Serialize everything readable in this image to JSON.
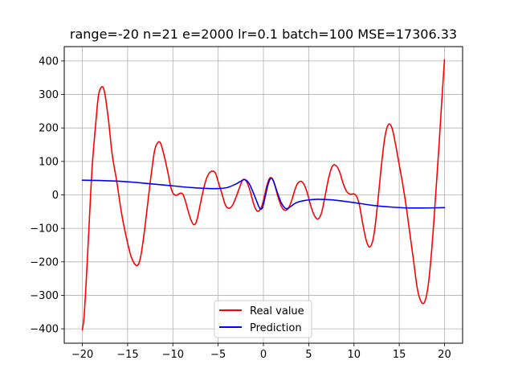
{
  "chart_data": {
    "type": "line",
    "title": "range=-20 n=21 e=2000 lr=0.1 batch=100 MSE=17306.33",
    "xlabel": "",
    "ylabel": "",
    "xlim": [
      -22,
      22
    ],
    "ylim": [
      -443,
      443
    ],
    "grid": true,
    "legend_position": "lower center",
    "x_ticks": [
      -20,
      -15,
      -10,
      -5,
      0,
      5,
      10,
      15,
      20
    ],
    "x_tick_labels": [
      "−20",
      "−15",
      "−10",
      "−5",
      "0",
      "5",
      "10",
      "15",
      "20"
    ],
    "y_ticks": [
      -400,
      -300,
      -200,
      -100,
      0,
      100,
      200,
      300,
      400
    ],
    "y_tick_labels": [
      "−400",
      "−300",
      "−200",
      "−100",
      "0",
      "100",
      "200",
      "300",
      "400"
    ],
    "series": [
      {
        "name": "Real value",
        "color": "#ff0000",
        "points": [
          [
            -20,
            -403
          ],
          [
            -19.8,
            -360
          ],
          [
            -19.5,
            -220
          ],
          [
            -19.2,
            -60
          ],
          [
            -18.9,
            90
          ],
          [
            -18.5,
            220
          ],
          [
            -18.2,
            300
          ],
          [
            -17.8,
            323
          ],
          [
            -17.5,
            300
          ],
          [
            -17.1,
            220
          ],
          [
            -16.7,
            120
          ],
          [
            -16.2,
            40
          ],
          [
            -15.7,
            -50
          ],
          [
            -15.2,
            -120
          ],
          [
            -14.6,
            -185
          ],
          [
            -14.0,
            -211
          ],
          [
            -13.6,
            -190
          ],
          [
            -13.2,
            -120
          ],
          [
            -12.8,
            -30
          ],
          [
            -12.4,
            60
          ],
          [
            -12.0,
            135
          ],
          [
            -11.6,
            158
          ],
          [
            -11.3,
            150
          ],
          [
            -10.9,
            110
          ],
          [
            -10.5,
            60
          ],
          [
            -10.2,
            20
          ],
          [
            -9.9,
            2
          ],
          [
            -9.6,
            -1
          ],
          [
            -9.2,
            5
          ],
          [
            -8.9,
            2
          ],
          [
            -8.6,
            -20
          ],
          [
            -8.3,
            -50
          ],
          [
            -8.0,
            -75
          ],
          [
            -7.7,
            -89
          ],
          [
            -7.4,
            -80
          ],
          [
            -7.1,
            -45
          ],
          [
            -6.8,
            -5
          ],
          [
            -6.4,
            40
          ],
          [
            -6.0,
            65
          ],
          [
            -5.6,
            71
          ],
          [
            -5.3,
            65
          ],
          [
            -5.0,
            40
          ],
          [
            -4.6,
            5
          ],
          [
            -4.2,
            -30
          ],
          [
            -3.8,
            -40
          ],
          [
            -3.4,
            -30
          ],
          [
            -3.0,
            -5
          ],
          [
            -2.6,
            25
          ],
          [
            -2.3,
            44
          ],
          [
            -2.0,
            45
          ],
          [
            -1.7,
            30
          ],
          [
            -1.4,
            5
          ],
          [
            -1.1,
            -25
          ],
          [
            -0.8,
            -45
          ],
          [
            -0.5,
            -48
          ],
          [
            -0.2,
            -35
          ],
          [
            0.1,
            -5
          ],
          [
            0.4,
            30
          ],
          [
            0.7,
            50
          ],
          [
            1.0,
            48
          ],
          [
            1.3,
            25
          ],
          [
            1.6,
            -5
          ],
          [
            2.0,
            -35
          ],
          [
            2.4,
            -46
          ],
          [
            2.8,
            -38
          ],
          [
            3.2,
            -10
          ],
          [
            3.6,
            25
          ],
          [
            4.0,
            40
          ],
          [
            4.4,
            35
          ],
          [
            4.8,
            10
          ],
          [
            5.2,
            -30
          ],
          [
            5.6,
            -60
          ],
          [
            6.0,
            -72
          ],
          [
            6.4,
            -55
          ],
          [
            6.8,
            -5
          ],
          [
            7.2,
            50
          ],
          [
            7.6,
            85
          ],
          [
            8.0,
            88
          ],
          [
            8.4,
            70
          ],
          [
            8.8,
            35
          ],
          [
            9.2,
            10
          ],
          [
            9.6,
            2
          ],
          [
            10.0,
            3
          ],
          [
            10.3,
            -5
          ],
          [
            10.6,
            -30
          ],
          [
            11.0,
            -90
          ],
          [
            11.4,
            -140
          ],
          [
            11.8,
            -155
          ],
          [
            12.2,
            -120
          ],
          [
            12.6,
            -30
          ],
          [
            13.0,
            80
          ],
          [
            13.4,
            170
          ],
          [
            13.8,
            210
          ],
          [
            14.2,
            200
          ],
          [
            14.6,
            150
          ],
          [
            15.0,
            90
          ],
          [
            15.4,
            30
          ],
          [
            15.8,
            -40
          ],
          [
            16.2,
            -120
          ],
          [
            16.6,
            -200
          ],
          [
            17.0,
            -280
          ],
          [
            17.4,
            -318
          ],
          [
            17.8,
            -320
          ],
          [
            18.2,
            -270
          ],
          [
            18.6,
            -160
          ],
          [
            19.0,
            -10
          ],
          [
            19.4,
            150
          ],
          [
            19.7,
            280
          ],
          [
            20.0,
            404
          ]
        ]
      },
      {
        "name": "Prediction",
        "color": "#0000ff",
        "points": [
          [
            -20,
            44
          ],
          [
            -18,
            43
          ],
          [
            -16,
            41
          ],
          [
            -14,
            37
          ],
          [
            -12,
            32
          ],
          [
            -10,
            27
          ],
          [
            -8,
            22
          ],
          [
            -6,
            19
          ],
          [
            -5,
            19
          ],
          [
            -4,
            22
          ],
          [
            -3,
            33
          ],
          [
            -2.3,
            44
          ],
          [
            -2.0,
            45
          ],
          [
            -1.6,
            35
          ],
          [
            -1.2,
            12
          ],
          [
            -0.8,
            -15
          ],
          [
            -0.4,
            -40
          ],
          [
            -0.1,
            -38
          ],
          [
            0.2,
            -5
          ],
          [
            0.5,
            30
          ],
          [
            0.8,
            50
          ],
          [
            1.1,
            42
          ],
          [
            1.5,
            10
          ],
          [
            2.0,
            -25
          ],
          [
            2.5,
            -41
          ],
          [
            3.0,
            -35
          ],
          [
            3.5,
            -25
          ],
          [
            4.0,
            -20
          ],
          [
            5.0,
            -15
          ],
          [
            6.0,
            -13
          ],
          [
            7.0,
            -14
          ],
          [
            8.0,
            -16
          ],
          [
            10.0,
            -23
          ],
          [
            12.0,
            -31
          ],
          [
            14.0,
            -36
          ],
          [
            16.0,
            -39
          ],
          [
            18.0,
            -39
          ],
          [
            20.0,
            -38
          ]
        ]
      }
    ]
  }
}
